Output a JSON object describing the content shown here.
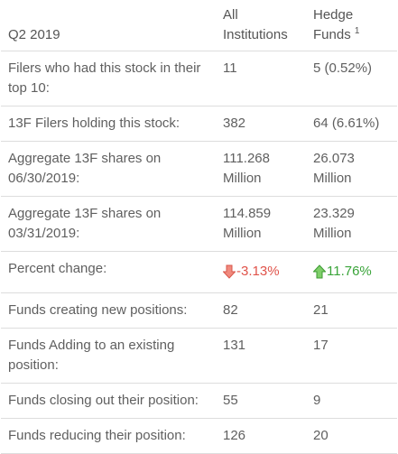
{
  "header": {
    "period": "Q2 2019",
    "col_all": "All Institutions",
    "col_all_line1": "All",
    "col_all_line2": "Institutions",
    "col_hedge_line1": "Hedge",
    "col_hedge_line2": "Funds",
    "col_hedge_footnote": "1"
  },
  "rows": [
    {
      "label": "Filers who had this stock in their top 10:",
      "all": "11",
      "hedge": "5 (0.52%)"
    },
    {
      "label": "13F Filers holding this stock:",
      "all": "382",
      "hedge": "64 (6.61%)"
    },
    {
      "label": "Aggregate 13F shares on 06/30/2019:",
      "all": "111.268 Million",
      "hedge": "26.073 Million"
    },
    {
      "label": "Aggregate 13F shares on 03/31/2019:",
      "all": "114.859 Million",
      "hedge": "23.329 Million"
    },
    {
      "label": "Percent change:",
      "all": "-3.13%",
      "hedge": "11.76%",
      "all_icon": "down-arrow-icon",
      "hedge_icon": "up-arrow-icon",
      "neg_color": "#e0534a",
      "pos_color": "#3aa43a"
    },
    {
      "label": "Funds creating new positions:",
      "all": "82",
      "hedge": "21"
    },
    {
      "label": "Funds Adding to an existing position:",
      "all": "131",
      "hedge": "17"
    },
    {
      "label": "Funds closing out their position:",
      "all": "55",
      "hedge": "9"
    },
    {
      "label": "Funds reducing their position:",
      "all": "126",
      "hedge": "20"
    }
  ]
}
